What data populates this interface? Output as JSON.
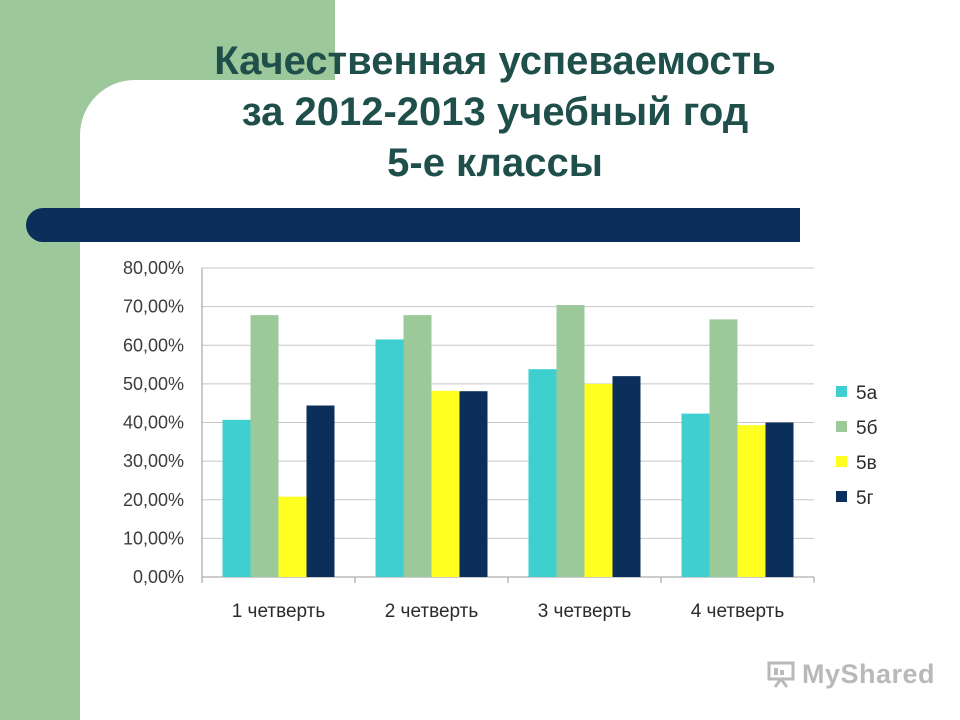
{
  "title": {
    "line1": "Качественная успеваемость",
    "line2": "за 2012-2013 учебный год",
    "line3": "5-е классы"
  },
  "chart_data": {
    "type": "bar",
    "categories": [
      "1 четверть",
      "2 четверть",
      "3 четверть",
      "4 четверть"
    ],
    "series": [
      {
        "name": "5а",
        "color": "#3fcfcf",
        "values": [
          40.7,
          61.5,
          53.8,
          42.3
        ]
      },
      {
        "name": "5б",
        "color": "#9bc99a",
        "values": [
          67.8,
          67.8,
          70.4,
          66.7
        ]
      },
      {
        "name": "5в",
        "color": "#ffff22",
        "values": [
          20.8,
          48.2,
          50.0,
          39.3
        ]
      },
      {
        "name": "5г",
        "color": "#0b2e5a",
        "values": [
          44.4,
          48.1,
          52.0,
          40.0
        ]
      }
    ],
    "y_ticks": [
      "0,00%",
      "10,00%",
      "20,00%",
      "30,00%",
      "40,00%",
      "50,00%",
      "60,00%",
      "70,00%",
      "80,00%"
    ],
    "ylim": [
      0,
      80
    ],
    "grid": true,
    "legend_position": "right"
  },
  "watermark": {
    "text": "MyShared"
  }
}
